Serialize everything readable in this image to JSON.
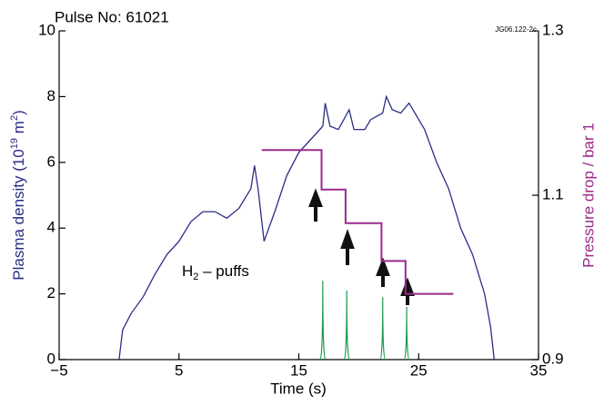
{
  "chart_data": {
    "type": "line",
    "title": "Pulse No: 61021",
    "code_label": "JG06.122-2c",
    "xlabel": "Time (s)",
    "ylabel": [
      "Plasma density (10",
      "19",
      " m",
      "2",
      ")"
    ],
    "y2label": "Pressure drop / bar 1",
    "annotation": [
      "H",
      "2",
      " – puffs"
    ],
    "xlim": [
      -5,
      35
    ],
    "xticks": [
      {
        "value": -5,
        "label": "−5"
      },
      5,
      15,
      25,
      35
    ],
    "ylim": [
      0,
      10
    ],
    "yticks": [
      0,
      2,
      4,
      6,
      8,
      10
    ],
    "y2lim": [
      0.9,
      1.3
    ],
    "y2ticks": [
      0.9,
      1.1,
      1.3
    ],
    "series": [
      {
        "kind": "line",
        "color": "#2b2c86",
        "x": [
          0,
          0.3,
          1,
          2,
          3,
          4,
          5,
          6,
          7,
          8,
          9,
          10,
          11,
          11.3,
          11.6,
          12.1,
          13,
          14,
          15,
          16,
          17,
          17.2,
          17.6,
          18.3,
          19.2,
          19.6,
          20.5,
          21,
          22,
          22.3,
          22.8,
          23.5,
          24.2,
          25.5,
          26.5,
          27.5,
          28.5,
          29.5,
          30.5,
          31,
          31.3
        ],
        "values": [
          0,
          0.9,
          1.4,
          1.9,
          2.6,
          3.2,
          3.6,
          4.2,
          4.5,
          4.5,
          4.3,
          4.6,
          5.2,
          5.9,
          5.2,
          3.6,
          4.5,
          5.6,
          6.3,
          6.7,
          7.1,
          7.8,
          7.1,
          7.0,
          7.6,
          7.0,
          7.0,
          7.3,
          7.5,
          8.0,
          7.6,
          7.5,
          7.8,
          7.0,
          6.0,
          5.2,
          4.0,
          3.2,
          2.0,
          1.0,
          0
        ]
      },
      {
        "kind": "line",
        "color": "#9b2a8e",
        "axis": "y2",
        "x": [
          11.9,
          16.9,
          16.9,
          18.9,
          18.9,
          21.9,
          21.9,
          23.9,
          23.9,
          27.9
        ],
        "values": [
          1.155,
          1.155,
          1.107,
          1.107,
          1.066,
          1.066,
          1.02,
          1.02,
          0.98,
          0.98
        ]
      },
      {
        "kind": "spike",
        "color": "#1a9a4a",
        "x": [
          17,
          19,
          22,
          24
        ],
        "values": [
          2.4,
          2.1,
          1.9,
          1.6
        ]
      }
    ]
  }
}
